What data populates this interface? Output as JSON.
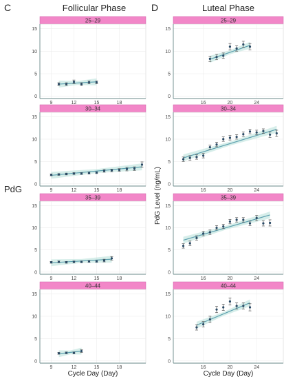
{
  "figure": {
    "panel_letters": [
      "C",
      "D"
    ],
    "y_label": "PdG Level (ng/mL)",
    "side_label": "PdG",
    "x_label": "Cycle Day (Day)",
    "strip_color": "#f287c8",
    "point_color": "#2a4a66",
    "line_color": "#5b9fae",
    "band_color": "#b7e0d8"
  },
  "chart_data": [
    {
      "type": "scatter",
      "panel": "C",
      "title": "Follicular Phase",
      "facet": "25–29",
      "xlabel": "",
      "ylabel": "",
      "xlim": [
        7.5,
        21.5
      ],
      "ylim": [
        -0.5,
        16
      ],
      "xticks": [
        9,
        12,
        15,
        18
      ],
      "yticks": [
        0,
        5,
        10,
        15
      ],
      "x": [
        10,
        11,
        12,
        13,
        14,
        15
      ],
      "y": [
        2.7,
        2.7,
        3.2,
        2.7,
        3.1,
        3.1
      ],
      "err": [
        0.3,
        0.3,
        0.4,
        0.3,
        0.3,
        0.3
      ],
      "fit": [
        [
          10,
          2.7
        ],
        [
          15,
          3.2
        ]
      ]
    },
    {
      "type": "scatter",
      "panel": "C",
      "title": "",
      "facet": "30–34",
      "xlabel": "",
      "ylabel": "",
      "xlim": [
        7.5,
        21.5
      ],
      "ylim": [
        -0.5,
        16
      ],
      "xticks": [
        9,
        12,
        15,
        18
      ],
      "yticks": [
        0,
        5,
        10,
        15
      ],
      "x": [
        9,
        10,
        11,
        12,
        13,
        14,
        15,
        16,
        17,
        18,
        19,
        20,
        21
      ],
      "y": [
        2.0,
        2.1,
        2.2,
        2.3,
        2.3,
        2.4,
        2.5,
        2.9,
        3.0,
        3.1,
        3.3,
        3.4,
        4.3
      ],
      "err": [
        0.2,
        0.2,
        0.2,
        0.2,
        0.2,
        0.2,
        0.2,
        0.3,
        0.3,
        0.3,
        0.4,
        0.4,
        0.6
      ],
      "fit": [
        [
          9,
          1.9
        ],
        [
          21,
          3.8
        ]
      ]
    },
    {
      "type": "scatter",
      "panel": "C",
      "title": "",
      "facet": "35–39",
      "xlabel": "",
      "ylabel": "",
      "xlim": [
        7.5,
        21.5
      ],
      "ylim": [
        -0.5,
        16
      ],
      "xticks": [
        9,
        12,
        15,
        18
      ],
      "yticks": [
        0,
        5,
        10,
        15
      ],
      "x": [
        9,
        10,
        11,
        12,
        13,
        14,
        15,
        16,
        17
      ],
      "y": [
        2.2,
        2.3,
        2.2,
        2.3,
        2.3,
        2.4,
        2.4,
        2.6,
        3.1
      ],
      "err": [
        0.2,
        0.2,
        0.2,
        0.2,
        0.2,
        0.2,
        0.2,
        0.3,
        0.4
      ],
      "fit": [
        [
          9,
          2.1
        ],
        [
          17,
          2.9
        ]
      ]
    },
    {
      "type": "scatter",
      "panel": "C",
      "title": "",
      "facet": "40–44",
      "xlabel": "Cycle Day (Day)",
      "ylabel": "",
      "xlim": [
        7.5,
        21.5
      ],
      "ylim": [
        -0.5,
        16
      ],
      "xticks": [
        9,
        12,
        15,
        18
      ],
      "yticks": [
        0,
        5,
        10,
        15
      ],
      "x": [
        10,
        11,
        12,
        13
      ],
      "y": [
        1.7,
        1.8,
        1.8,
        2.2
      ],
      "err": [
        0.2,
        0.2,
        0.2,
        0.3
      ],
      "fit": [
        [
          10,
          1.6
        ],
        [
          13,
          2.2
        ]
      ]
    },
    {
      "type": "scatter",
      "panel": "D",
      "title": "Luteal Phase",
      "facet": "25–29",
      "xlabel": "",
      "ylabel": "",
      "xlim": [
        11.5,
        28
      ],
      "ylim": [
        -0.5,
        16
      ],
      "xticks": [
        16,
        20,
        24
      ],
      "yticks": [
        0,
        5,
        10,
        15
      ],
      "x": [
        17,
        18,
        19,
        20,
        21,
        22,
        23
      ],
      "y": [
        8.3,
        8.7,
        9.0,
        11.0,
        10.6,
        11.5,
        11.0
      ],
      "err": [
        0.6,
        0.6,
        0.6,
        0.7,
        0.6,
        0.7,
        0.7
      ],
      "fit": [
        [
          17,
          8.2
        ],
        [
          23,
          11.3
        ]
      ]
    },
    {
      "type": "scatter",
      "panel": "D",
      "title": "",
      "facet": "30–34",
      "xlabel": "",
      "ylabel": "",
      "xlim": [
        11.5,
        28
      ],
      "ylim": [
        -0.5,
        16
      ],
      "xticks": [
        16,
        20,
        24
      ],
      "yticks": [
        0,
        5,
        10,
        15
      ],
      "x": [
        13,
        14,
        15,
        16,
        17,
        18,
        19,
        20,
        21,
        22,
        23,
        24,
        25,
        26,
        27
      ],
      "y": [
        5.5,
        5.8,
        6.0,
        6.3,
        8.2,
        8.8,
        10.0,
        10.3,
        10.5,
        11.1,
        11.7,
        11.5,
        11.8,
        11.0,
        11.3
      ],
      "err": [
        0.5,
        0.5,
        0.5,
        0.5,
        0.5,
        0.5,
        0.5,
        0.5,
        0.5,
        0.5,
        0.5,
        0.5,
        0.5,
        0.6,
        0.7
      ],
      "fit": [
        [
          13,
          5.8
        ],
        [
          27,
          12.2
        ]
      ]
    },
    {
      "type": "scatter",
      "panel": "D",
      "title": "",
      "facet": "35–39",
      "xlabel": "",
      "ylabel": "",
      "xlim": [
        11.5,
        28
      ],
      "ylim": [
        -0.5,
        16
      ],
      "xticks": [
        16,
        20,
        24
      ],
      "yticks": [
        0,
        5,
        10,
        15
      ],
      "x": [
        13,
        14,
        15,
        16,
        17,
        18,
        19,
        20,
        21,
        22,
        23,
        24,
        25,
        26
      ],
      "y": [
        5.9,
        6.5,
        7.7,
        8.7,
        9.0,
        10.0,
        10.3,
        11.4,
        11.8,
        11.8,
        11.0,
        12.2,
        11.0,
        11.1
      ],
      "err": [
        0.5,
        0.5,
        0.5,
        0.5,
        0.5,
        0.5,
        0.5,
        0.5,
        0.5,
        0.5,
        0.5,
        0.6,
        0.6,
        0.7
      ],
      "fit": [
        [
          13,
          7.2
        ],
        [
          26,
          12.9
        ]
      ]
    },
    {
      "type": "scatter",
      "panel": "D",
      "title": "",
      "facet": "40–44",
      "xlabel": "Cycle Day (Day)",
      "ylabel": "",
      "xlim": [
        11.5,
        28
      ],
      "ylim": [
        -0.5,
        16
      ],
      "xticks": [
        16,
        20,
        24
      ],
      "yticks": [
        0,
        5,
        10,
        15
      ],
      "x": [
        15,
        16,
        17,
        18,
        19,
        20,
        21,
        22,
        23
      ],
      "y": [
        7.5,
        8.2,
        9.3,
        11.5,
        12.0,
        13.3,
        12.3,
        12.3,
        12.0
      ],
      "err": [
        0.6,
        0.6,
        0.7,
        0.7,
        0.7,
        0.8,
        0.7,
        0.7,
        0.8
      ],
      "fit": [
        [
          15,
          8.0
        ],
        [
          23,
          13.0
        ]
      ]
    }
  ]
}
